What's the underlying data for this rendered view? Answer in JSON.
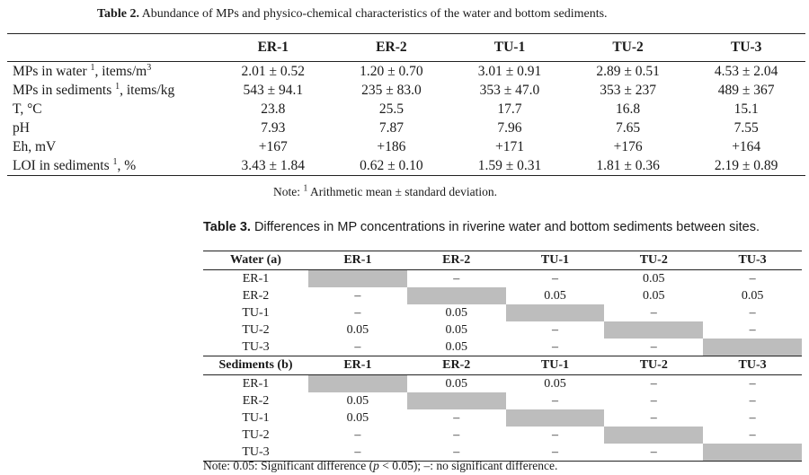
{
  "table2": {
    "caption_label": "Table 2.",
    "caption_text": "Abundance of MPs and physico-chemical characteristics of the water and bottom sediments.",
    "headers": [
      "",
      "ER-1",
      "ER-2",
      "TU-1",
      "TU-2",
      "TU-3"
    ],
    "rows": [
      {
        "label": "MPs in water ",
        "sup": "1",
        "unit": ", items/m",
        "unit_sup": "3",
        "values": [
          "2.01 ± 0.52",
          "1.20 ± 0.70",
          "3.01 ± 0.91",
          "2.89 ± 0.51",
          "4.53 ± 2.04"
        ]
      },
      {
        "label": "MPs in sediments ",
        "sup": "1",
        "unit": ", items/kg",
        "unit_sup": "",
        "values": [
          "543 ± 94.1",
          "235 ± 83.0",
          "353 ± 47.0",
          "353 ± 237",
          "489 ± 367"
        ]
      },
      {
        "label": "T, °C",
        "sup": "",
        "unit": "",
        "unit_sup": "",
        "values": [
          "23.8",
          "25.5",
          "17.7",
          "16.8",
          "15.1"
        ]
      },
      {
        "label": "pH",
        "sup": "",
        "unit": "",
        "unit_sup": "",
        "values": [
          "7.93",
          "7.87",
          "7.96",
          "7.65",
          "7.55"
        ]
      },
      {
        "label": "Eh, mV",
        "sup": "",
        "unit": "",
        "unit_sup": "",
        "values": [
          "+167",
          "+186",
          "+171",
          "+176",
          "+164"
        ]
      },
      {
        "label": "LOI in sediments ",
        "sup": "1",
        "unit": ", %",
        "unit_sup": "",
        "values": [
          "3.43 ± 1.84",
          "0.62 ± 0.10",
          "1.59 ± 0.31",
          "1.81 ± 0.36",
          "2.19 ± 0.89"
        ]
      }
    ],
    "note_prefix": "Note: ",
    "note_sup": "1",
    "note_text": " Arithmetic mean ± standard deviation."
  },
  "table3": {
    "caption_label": "Table 3.",
    "caption_text": "Differences in MP concentrations in riverine water and bottom sediments between sites.",
    "columns": [
      "ER-1",
      "ER-2",
      "TU-1",
      "TU-2",
      "TU-3"
    ],
    "sections": [
      {
        "title": "Water (a)",
        "rows": [
          {
            "label": "ER-1",
            "cells": [
              "",
              "–",
              "–",
              "0.05",
              "–"
            ]
          },
          {
            "label": "ER-2",
            "cells": [
              "–",
              "",
              "0.05",
              "0.05",
              "0.05"
            ]
          },
          {
            "label": "TU-1",
            "cells": [
              "–",
              "0.05",
              "",
              "–",
              "–"
            ]
          },
          {
            "label": "TU-2",
            "cells": [
              "0.05",
              "0.05",
              "–",
              "",
              "–"
            ]
          },
          {
            "label": "TU-3",
            "cells": [
              "–",
              "0.05",
              "–",
              "–",
              ""
            ]
          }
        ]
      },
      {
        "title": "Sediments (b)",
        "rows": [
          {
            "label": "ER-1",
            "cells": [
              "",
              "0.05",
              "0.05",
              "–",
              "–"
            ]
          },
          {
            "label": "ER-2",
            "cells": [
              "0.05",
              "",
              "–",
              "–",
              "–"
            ]
          },
          {
            "label": "TU-1",
            "cells": [
              "0.05",
              "–",
              "",
              "–",
              "–"
            ]
          },
          {
            "label": "TU-2",
            "cells": [
              "–",
              "–",
              "–",
              "",
              "–"
            ]
          },
          {
            "label": "TU-3",
            "cells": [
              "–",
              "–",
              "–",
              "–",
              ""
            ]
          }
        ]
      }
    ],
    "note_prefix": "Note: 0.05: Significant difference (",
    "note_p": "p",
    "note_suffix": " < 0.05); –: no significant difference."
  },
  "colors": {
    "shade": "#bdbdbd",
    "rule": "#222222"
  }
}
